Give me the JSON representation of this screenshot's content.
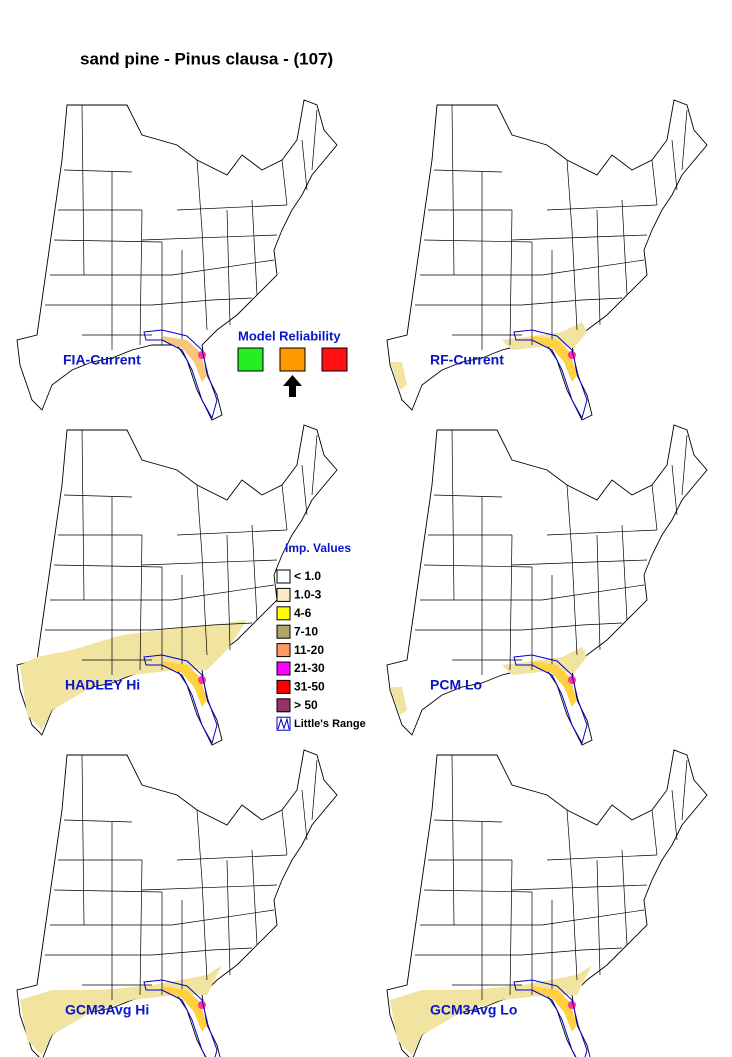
{
  "title": "sand pine - Pinus clausa - (107)",
  "panels": [
    {
      "label": "FIA-Current"
    },
    {
      "label": "RF-Current"
    },
    {
      "label": "HADLEY Hi"
    },
    {
      "label": "PCM Lo"
    },
    {
      "label": "GCM3Avg Hi"
    },
    {
      "label": "GCM3Avg Lo"
    }
  ],
  "model_reliability": {
    "title": "Model Reliability",
    "boxes": [
      {
        "color": "#22ee22"
      },
      {
        "color": "#ff9900",
        "selected": true
      },
      {
        "color": "#ff1111"
      }
    ]
  },
  "legend": {
    "title": "Imp. Values",
    "items": [
      {
        "label": "< 1.0",
        "color": "#ffffff"
      },
      {
        "label": "1.0-3",
        "color": "#fde9c4"
      },
      {
        "label": "4-6",
        "color": "#ffff00"
      },
      {
        "label": "7-10",
        "color": "#b4a46a"
      },
      {
        "label": "11-20",
        "color": "#ff9966"
      },
      {
        "label": "21-30",
        "color": "#ff00ff"
      },
      {
        "label": "31-50",
        "color": "#ff0000"
      },
      {
        "label": "> 50",
        "color": "#993366"
      },
      {
        "label": "Little's Range",
        "color": "#0000cc"
      }
    ]
  }
}
